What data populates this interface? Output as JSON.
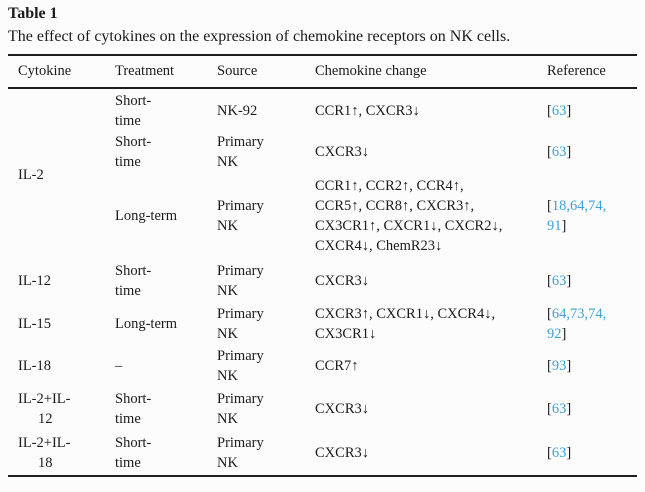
{
  "page": {
    "background_color": "#fcfcfc",
    "text_color": "#1b1b1b",
    "citation_color": "#3ea2da"
  },
  "table": {
    "label": "Table 1",
    "caption": "The effect of cytokines on the expression of chemokine receptors on NK cells.",
    "columns": [
      "Cytokine",
      "Treatment",
      "Source",
      "Chemokine change",
      "Reference"
    ],
    "rows": [
      {
        "cytokine": "IL-2",
        "treatment": "Short-\ntime",
        "source": "NK-92",
        "change": "CCR1↑, CXCR3↓",
        "refs": [
          [
            "63"
          ]
        ]
      },
      {
        "treatment": "Short-\ntime",
        "source": "Primary\nNK",
        "change": "CXCR3↓",
        "refs": [
          [
            "63"
          ]
        ]
      },
      {
        "treatment": "Long-term",
        "source": "Primary\nNK",
        "change": "CCR1↑, CCR2↑, CCR4↑,\nCCR5↑, CCR8↑, CXCR3↑,\nCX3CR1↑, CXCR1↓, CXCR2↓,\nCXCR4↓, ChemR23↓",
        "refs": [
          [
            "18",
            "64",
            "74"
          ],
          [
            "91"
          ]
        ]
      },
      {
        "cytokine": "IL-12",
        "treatment": "Short-\ntime",
        "source": "Primary\nNK",
        "change": "CXCR3↓",
        "refs": [
          [
            "63"
          ]
        ]
      },
      {
        "cytokine": "IL-15",
        "treatment": "Long-term",
        "source": "Primary\nNK",
        "change": "CXCR3↑, CXCR1↓, CXCR4↓,\nCX3CR1↓",
        "refs": [
          [
            "64",
            "73",
            "74"
          ],
          [
            "92"
          ]
        ]
      },
      {
        "cytokine": "IL-18",
        "treatment": "–",
        "source": "Primary\nNK",
        "change": "CCR7↑",
        "refs": [
          [
            "93"
          ]
        ]
      },
      {
        "cytokine": "IL-2+IL-\n12",
        "treatment": "Short-\ntime",
        "source": "Primary\nNK",
        "change": "CXCR3↓",
        "refs": [
          [
            "63"
          ]
        ]
      },
      {
        "cytokine": "IL-2+IL-\n18",
        "treatment": "Short-\ntime",
        "source": "Primary\nNK",
        "change": "CXCR3↓",
        "refs": [
          [
            "63"
          ]
        ]
      }
    ]
  }
}
